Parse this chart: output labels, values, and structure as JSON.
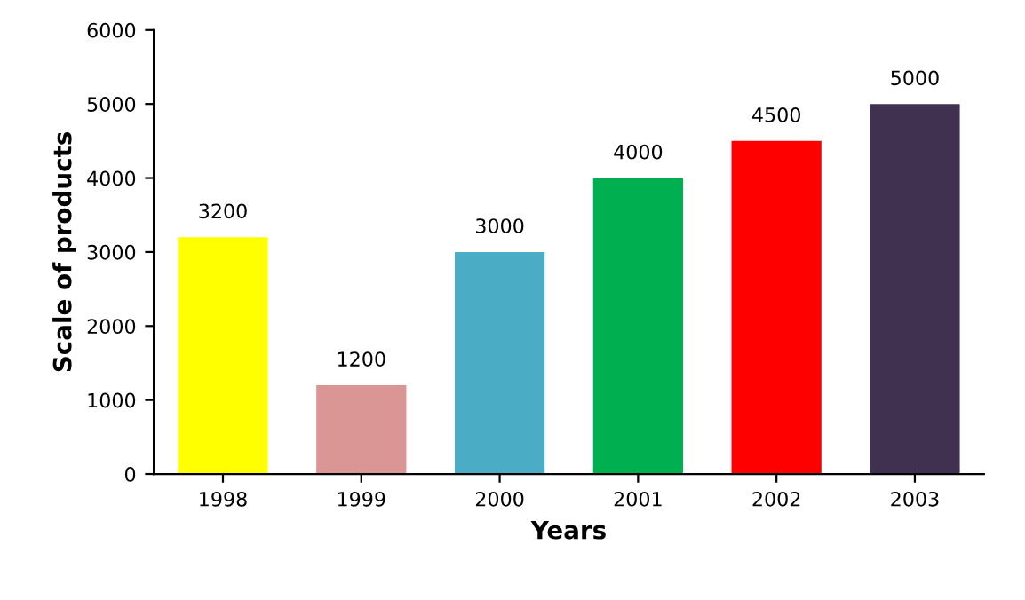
{
  "chart_data": {
    "type": "bar",
    "xlabel": "Years",
    "ylabel": "Scale of products",
    "categories": [
      "1998",
      "1999",
      "2000",
      "2001",
      "2002",
      "2003"
    ],
    "values": [
      3200,
      1200,
      3000,
      4000,
      4500,
      5000
    ],
    "colors": [
      "#ffff00",
      "#d99694",
      "#4bacc6",
      "#00b050",
      "#ff0000",
      "#403151"
    ],
    "ylim": [
      0,
      6000
    ],
    "yticks": [
      0,
      1000,
      2000,
      3000,
      4000,
      5000,
      6000
    ],
    "data_labels": true,
    "grid": false
  }
}
